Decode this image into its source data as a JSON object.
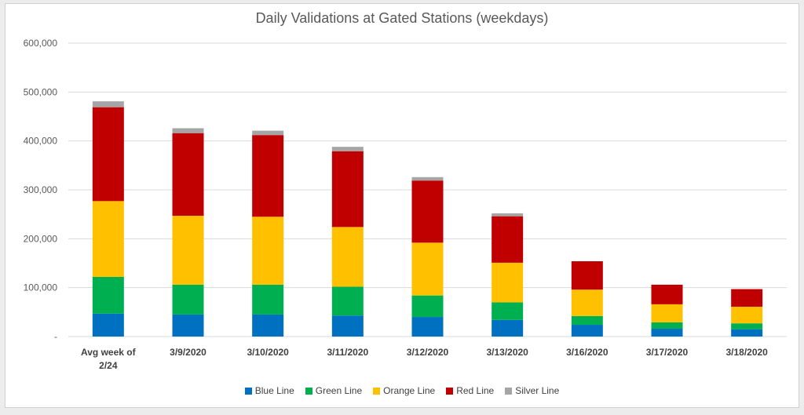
{
  "chart_data": {
    "type": "bar",
    "stacked": true,
    "title": "Daily Validations at Gated Stations (weekdays)",
    "categories": [
      "Avg week of 2/24",
      "3/9/2020",
      "3/10/2020",
      "3/11/2020",
      "3/12/2020",
      "3/13/2020",
      "3/16/2020",
      "3/17/2020",
      "3/18/2020"
    ],
    "series": [
      {
        "name": "Blue Line",
        "color": "#0070c0",
        "values": [
          47000,
          45000,
          45000,
          43000,
          40000,
          34000,
          24000,
          16000,
          15000
        ]
      },
      {
        "name": "Green Line",
        "color": "#00b050",
        "values": [
          75000,
          61000,
          61000,
          59000,
          44000,
          36000,
          18000,
          13000,
          12000
        ]
      },
      {
        "name": "Orange Line",
        "color": "#ffc000",
        "values": [
          155000,
          141000,
          139000,
          122000,
          108000,
          81000,
          54000,
          37000,
          34000
        ]
      },
      {
        "name": "Red Line",
        "color": "#c00000",
        "values": [
          192000,
          169000,
          167000,
          155000,
          127000,
          95000,
          58000,
          40000,
          36000
        ]
      },
      {
        "name": "Silver Line",
        "color": "#a5a5a5",
        "values": [
          12000,
          10000,
          9000,
          9000,
          7000,
          6000,
          0,
          0,
          0
        ]
      }
    ],
    "ylim": [
      0,
      600000
    ],
    "yticks": [
      0,
      100000,
      200000,
      300000,
      400000,
      500000,
      600000
    ],
    "ytick_labels": [
      "-",
      "100,000",
      "200,000",
      "300,000",
      "400,000",
      "500,000",
      "600,000"
    ],
    "grid": true,
    "legend": "bottom"
  }
}
